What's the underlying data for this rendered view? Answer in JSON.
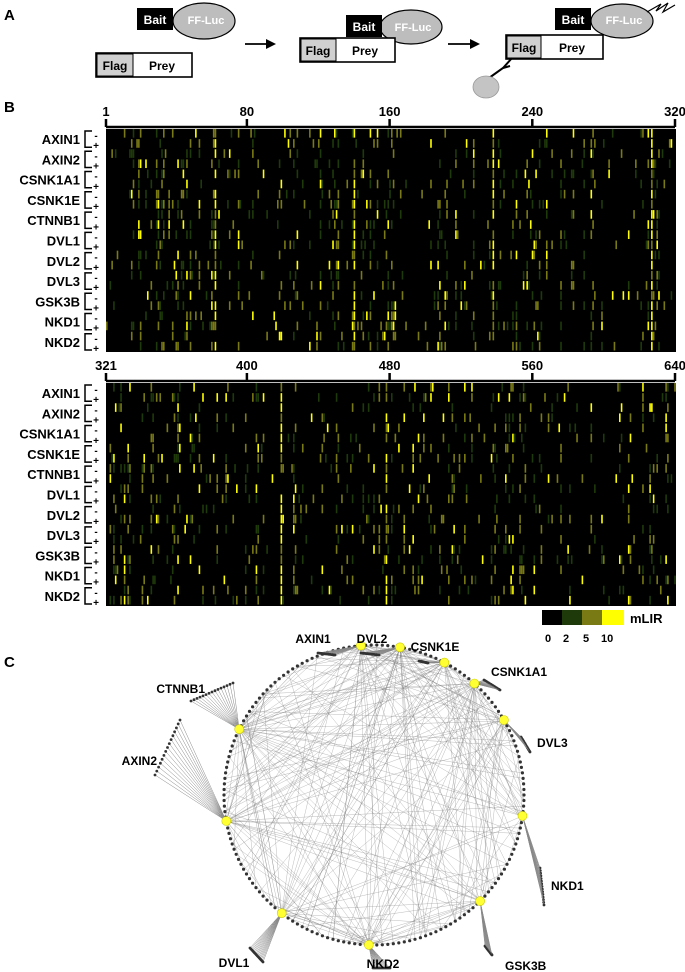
{
  "panel_letters": [
    "A",
    "B",
    "C"
  ],
  "panel_a": {
    "bait": "Bait",
    "ff_luc": "FF-Luc",
    "flag": "Flag",
    "prey": "Prey"
  },
  "panel_b": {
    "top_ticks": [
      "1",
      "80",
      "160",
      "240",
      "320"
    ],
    "bottom_ticks": [
      "321",
      "400",
      "480",
      "560",
      "640"
    ],
    "rows": [
      "AXIN1",
      "AXIN2",
      "CSNK1A1",
      "CSNK1E",
      "CTNNB1",
      "DVL1",
      "DVL2",
      "DVL3",
      "GSK3B",
      "NKD1",
      "NKD2"
    ],
    "signs": [
      "-",
      "+"
    ],
    "legend": {
      "title": "mLIR",
      "ticks": [
        "0",
        "2",
        "5",
        "10"
      ],
      "colors": [
        "#000000",
        "#1e3a0a",
        "#7a7a14",
        "#ffff00"
      ]
    }
  },
  "panel_c": {
    "nodes": [
      "AXIN1",
      "DVL2",
      "CSNK1E",
      "CSNK1A1",
      "DVL3",
      "NKD1",
      "GSK3B",
      "NKD2",
      "DVL1",
      "AXIN2",
      "CTNNB1"
    ],
    "node_color": "#ffff33"
  },
  "chart_data": {
    "type": "heatmap",
    "title": "",
    "x_range": [
      1,
      640
    ],
    "rows": [
      "AXIN1 -",
      "AXIN1 +",
      "AXIN2 -",
      "AXIN2 +",
      "CSNK1A1 -",
      "CSNK1A1 +",
      "CSNK1E -",
      "CSNK1E +",
      "CTNNB1 -",
      "CTNNB1 +",
      "DVL1 -",
      "DVL1 +",
      "DVL2 -",
      "DVL2 +",
      "DVL3 -",
      "DVL3 +",
      "GSK3B -",
      "GSK3B +",
      "NKD1 -",
      "NKD1 +",
      "NKD2 -",
      "NKD2 +"
    ],
    "color_scale": {
      "label": "mLIR",
      "stops": [
        0,
        2,
        5,
        10
      ]
    },
    "bright_columns_top": [
      62,
      140,
      218,
      307
    ],
    "bright_columns_bottom": [
      419,
      478
    ]
  }
}
